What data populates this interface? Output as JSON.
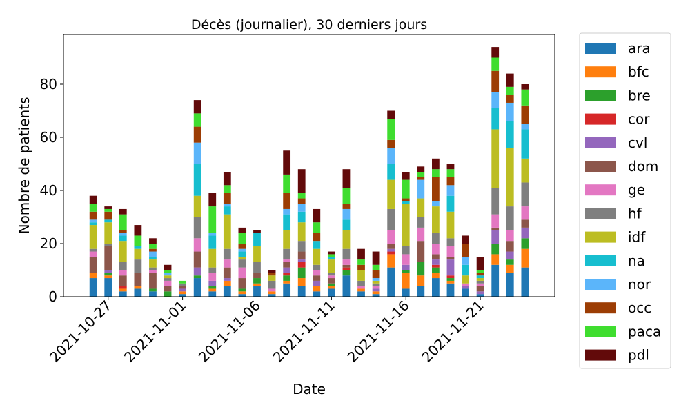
{
  "chart_data": {
    "type": "stacked_bar",
    "title": "Décès (journalier), 30 derniers jours",
    "xlabel": "Date",
    "ylabel": "Nombre de patients",
    "x": [
      "2021-10-26",
      "2021-10-27",
      "2021-10-28",
      "2021-10-29",
      "2021-10-30",
      "2021-10-31",
      "2021-11-01",
      "2021-11-02",
      "2021-11-03",
      "2021-11-04",
      "2021-11-05",
      "2021-11-06",
      "2021-11-07",
      "2021-11-08",
      "2021-11-09",
      "2021-11-10",
      "2021-11-11",
      "2021-11-12",
      "2021-11-13",
      "2021-11-14",
      "2021-11-15",
      "2021-11-16",
      "2021-11-17",
      "2021-11-18",
      "2021-11-19",
      "2021-11-20",
      "2021-11-21",
      "2021-11-22",
      "2021-11-23",
      "2021-11-24"
    ],
    "xlim": [
      "2021-10-24",
      "2021-11-26"
    ],
    "xticks": [
      "2021-10-27",
      "2021-11-01",
      "2021-11-06",
      "2021-11-11",
      "2021-11-16",
      "2021-11-21"
    ],
    "ylim": [
      0,
      98.7
    ],
    "yticks": [
      0,
      20,
      40,
      60,
      80
    ],
    "legend": "outside-right",
    "series": [
      {
        "name": "ara",
        "color": "#1f77b4",
        "values": [
          7,
          7,
          2,
          3,
          2,
          0,
          1,
          7,
          2,
          4,
          1,
          4,
          1,
          5,
          4,
          2,
          3,
          8,
          2,
          1,
          11,
          3,
          4,
          7,
          5,
          3,
          1,
          12,
          9,
          11
        ]
      },
      {
        "name": "bfc",
        "color": "#ff7f0e",
        "values": [
          2,
          1,
          1,
          1,
          0,
          0,
          1,
          0,
          1,
          2,
          1,
          1,
          1,
          1,
          3,
          2,
          1,
          0,
          1,
          1,
          5,
          6,
          4,
          2,
          1,
          0,
          0,
          4,
          3,
          7
        ]
      },
      {
        "name": "bre",
        "color": "#2ca02c",
        "values": [
          0,
          1,
          0,
          0,
          1,
          2,
          0,
          1,
          1,
          0,
          1,
          2,
          0,
          2,
          4,
          0,
          1,
          2,
          0,
          0,
          0,
          1,
          5,
          2,
          1,
          0,
          0,
          4,
          2,
          4
        ]
      },
      {
        "name": "cor",
        "color": "#d62728",
        "values": [
          0,
          0,
          1,
          0,
          0,
          0,
          0,
          0,
          0,
          0,
          0,
          0,
          0,
          1,
          2,
          0,
          0,
          1,
          0,
          0,
          1,
          0,
          0,
          1,
          1,
          0,
          0,
          0,
          0,
          0
        ]
      },
      {
        "name": "cvl",
        "color": "#9467bd",
        "values": [
          0,
          1,
          0,
          0,
          0,
          0,
          1,
          3,
          2,
          1,
          0,
          0,
          0,
          2,
          1,
          2,
          0,
          0,
          0,
          1,
          1,
          2,
          0,
          2,
          6,
          1,
          1,
          5,
          3,
          4
        ]
      },
      {
        "name": "dom",
        "color": "#8c564b",
        "values": [
          6,
          9,
          4,
          5,
          6,
          2,
          1,
          6,
          0,
          4,
          4,
          2,
          0,
          2,
          3,
          2,
          2,
          1,
          0,
          0,
          2,
          0,
          8,
          2,
          1,
          0,
          2,
          1,
          4,
          3
        ]
      },
      {
        "name": "ge",
        "color": "#e377c2",
        "values": [
          2,
          0,
          2,
          0,
          1,
          2,
          0,
          5,
          3,
          3,
          4,
          0,
          1,
          1,
          0,
          2,
          1,
          2,
          1,
          1,
          5,
          4,
          5,
          4,
          4,
          1,
          1,
          5,
          4,
          5
        ]
      },
      {
        "name": "hf",
        "color": "#7f7f7f",
        "values": [
          1,
          1,
          3,
          5,
          1,
          1,
          1,
          8,
          2,
          4,
          3,
          4,
          3,
          4,
          4,
          2,
          1,
          4,
          2,
          1,
          8,
          3,
          4,
          4,
          3,
          0,
          1,
          10,
          9,
          9
        ]
      },
      {
        "name": "idf",
        "color": "#bcbd22",
        "values": [
          9,
          8,
          8,
          4,
          3,
          1,
          0,
          8,
          7,
          13,
          1,
          6,
          2,
          7,
          7,
          6,
          5,
          7,
          4,
          1,
          11,
          16,
          7,
          10,
          10,
          3,
          1,
          22,
          22,
          9
        ]
      },
      {
        "name": "na",
        "color": "#17becf",
        "values": [
          1,
          1,
          2,
          1,
          1,
          0,
          0,
          12,
          5,
          3,
          2,
          5,
          0,
          6,
          4,
          3,
          1,
          4,
          0,
          0,
          6,
          1,
          0,
          0,
          6,
          4,
          1,
          8,
          10,
          11
        ]
      },
      {
        "name": "nor",
        "color": "#5bb5fa",
        "values": [
          1,
          0,
          1,
          0,
          2,
          1,
          0,
          8,
          1,
          1,
          1,
          0,
          0,
          2,
          3,
          0,
          0,
          4,
          0,
          1,
          6,
          0,
          7,
          2,
          4,
          3,
          0,
          6,
          7,
          2
        ]
      },
      {
        "name": "occ",
        "color": "#9c3d04",
        "values": [
          3,
          3,
          1,
          0,
          1,
          0,
          0,
          6,
          0,
          4,
          2,
          0,
          1,
          6,
          2,
          3,
          0,
          2,
          2,
          3,
          3,
          1,
          1,
          9,
          3,
          5,
          1,
          8,
          3,
          7
        ]
      },
      {
        "name": "paca",
        "color": "#3fdd2f",
        "values": [
          3,
          1,
          6,
          4,
          2,
          1,
          1,
          5,
          10,
          3,
          4,
          0,
          0,
          7,
          2,
          4,
          1,
          6,
          2,
          2,
          8,
          7,
          2,
          3,
          3,
          0,
          1,
          5,
          3,
          6
        ]
      },
      {
        "name": "pdl",
        "color": "#620a0a",
        "values": [
          3,
          1,
          2,
          4,
          2,
          2,
          0,
          5,
          5,
          5,
          2,
          1,
          1,
          9,
          9,
          5,
          1,
          7,
          4,
          5,
          3,
          3,
          2,
          4,
          2,
          3,
          5,
          4,
          5,
          2
        ]
      }
    ]
  }
}
